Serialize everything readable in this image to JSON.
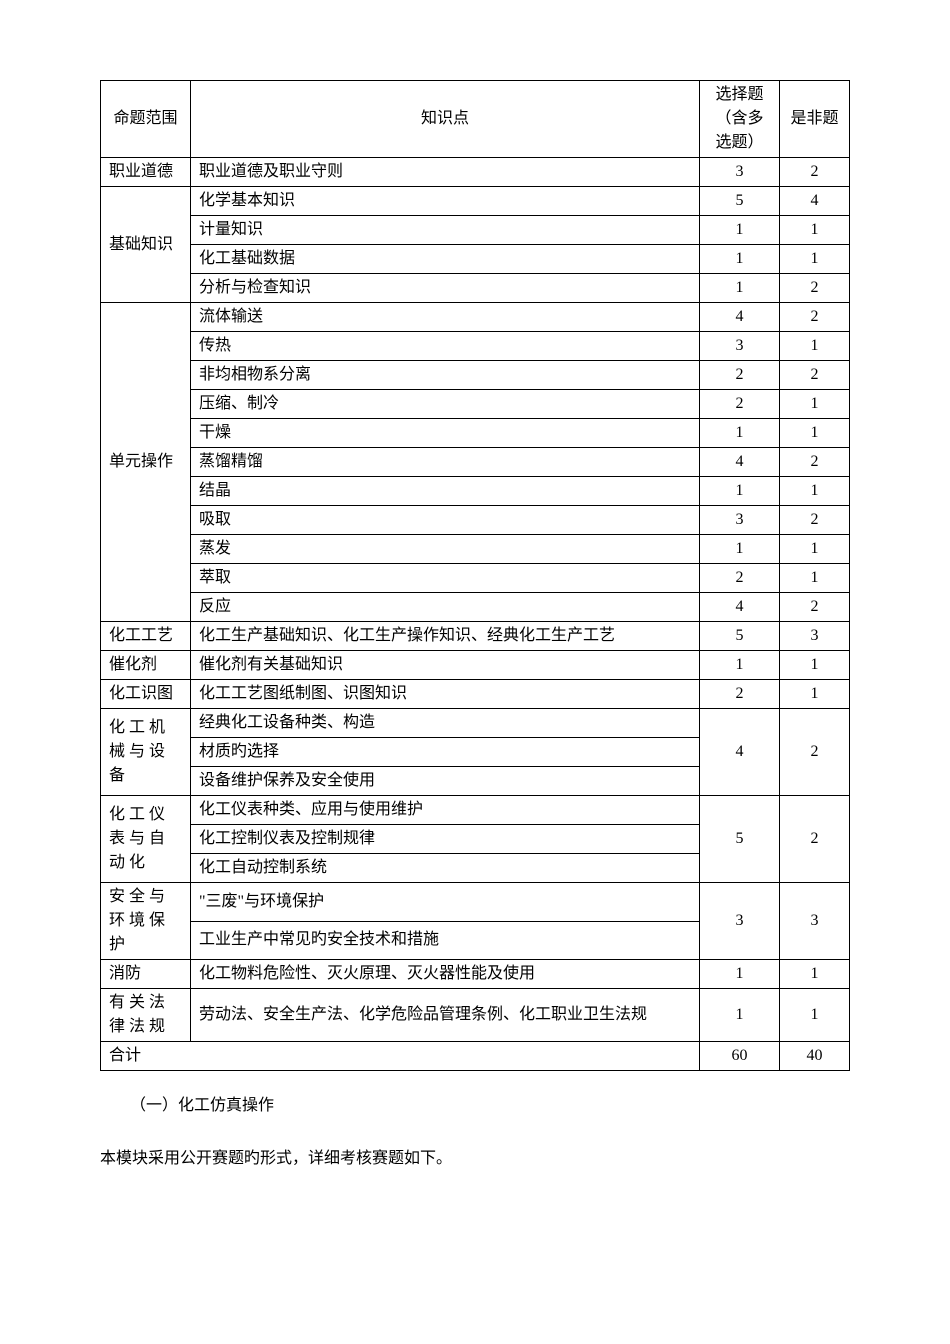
{
  "table": {
    "headers": {
      "col1": "命题范围",
      "col2": "知识点",
      "col3": "选择题（含多选题）",
      "col4": "是非题"
    },
    "rows": [
      {
        "cat": "职业道德",
        "topic": "职业道德及职业守则",
        "choice": "3",
        "tf": "2",
        "rowspan": 1
      },
      {
        "cat": "基础知识",
        "topic": "化学基本知识",
        "choice": "5",
        "tf": "4",
        "rowspan": 4
      },
      {
        "topic": "计量知识",
        "choice": "1",
        "tf": "1"
      },
      {
        "topic": "化工基础数据",
        "choice": "1",
        "tf": "1"
      },
      {
        "topic": "分析与检查知识",
        "choice": "1",
        "tf": "2"
      },
      {
        "cat": "单元操作",
        "topic": "流体输送",
        "choice": "4",
        "tf": "2",
        "rowspan": 11
      },
      {
        "topic": "传热",
        "choice": "3",
        "tf": "1"
      },
      {
        "topic": "非均相物系分离",
        "choice": "2",
        "tf": "2"
      },
      {
        "topic": "压缩、制冷",
        "choice": "2",
        "tf": "1"
      },
      {
        "topic": "干燥",
        "choice": "1",
        "tf": "1"
      },
      {
        "topic": "蒸馏精馏",
        "choice": "4",
        "tf": "2"
      },
      {
        "topic": "结晶",
        "choice": "1",
        "tf": "1"
      },
      {
        "topic": "吸取",
        "choice": "3",
        "tf": "2"
      },
      {
        "topic": "蒸发",
        "choice": "1",
        "tf": "1"
      },
      {
        "topic": "萃取",
        "choice": "2",
        "tf": "1"
      },
      {
        "topic": "反应",
        "choice": "4",
        "tf": "2"
      },
      {
        "cat": "化工工艺",
        "topic": "化工生产基础知识、化工生产操作知识、经典化工生产工艺",
        "choice": "5",
        "tf": "3",
        "rowspan": 1
      },
      {
        "cat": "催化剂",
        "topic": "催化剂有关基础知识",
        "choice": "1",
        "tf": "1",
        "rowspan": 1
      },
      {
        "cat": "化工识图",
        "topic": "化工工艺图纸制图、识图知识",
        "choice": "2",
        "tf": "1",
        "rowspan": 1
      },
      {
        "cat": "化工机械与设备",
        "topic": "经典化工设备种类、构造",
        "choice": "4",
        "tf": "2",
        "rowspan": 3,
        "mergeChoice": 3,
        "spaced": true
      },
      {
        "topic": "材质旳选择"
      },
      {
        "topic": "设备维护保养及安全使用"
      },
      {
        "cat": "化工仪表与自动化",
        "topic": "化工仪表种类、应用与使用维护",
        "choice": "5",
        "tf": "2",
        "rowspan": 3,
        "mergeChoice": 3,
        "spaced": true
      },
      {
        "topic": "化工控制仪表及控制规律"
      },
      {
        "topic": "化工自动控制系统"
      },
      {
        "cat": "安全与环境保护",
        "topic": "\"三废\"与环境保护",
        "choice": "3",
        "tf": "3",
        "rowspan": 2,
        "mergeChoice": 2,
        "spaced": true
      },
      {
        "topic": "工业生产中常见旳安全技术和措施"
      },
      {
        "cat": "消防",
        "topic": "化工物料危险性、灭火原理、灭火器性能及使用",
        "choice": "1",
        "tf": "1",
        "rowspan": 1
      },
      {
        "cat": "有关法律法规",
        "topic": "劳动法、安全生产法、化学危险品管理条例、化工职业卫生法规",
        "choice": "1",
        "tf": "1",
        "rowspan": 1,
        "spaced": true
      }
    ],
    "footer": {
      "label": "合计",
      "choice": "60",
      "tf": "40"
    }
  },
  "section_heading": "（一）化工仿真操作",
  "paragraph": "本模块采用公开赛题旳形式，详细考核赛题如下。"
}
